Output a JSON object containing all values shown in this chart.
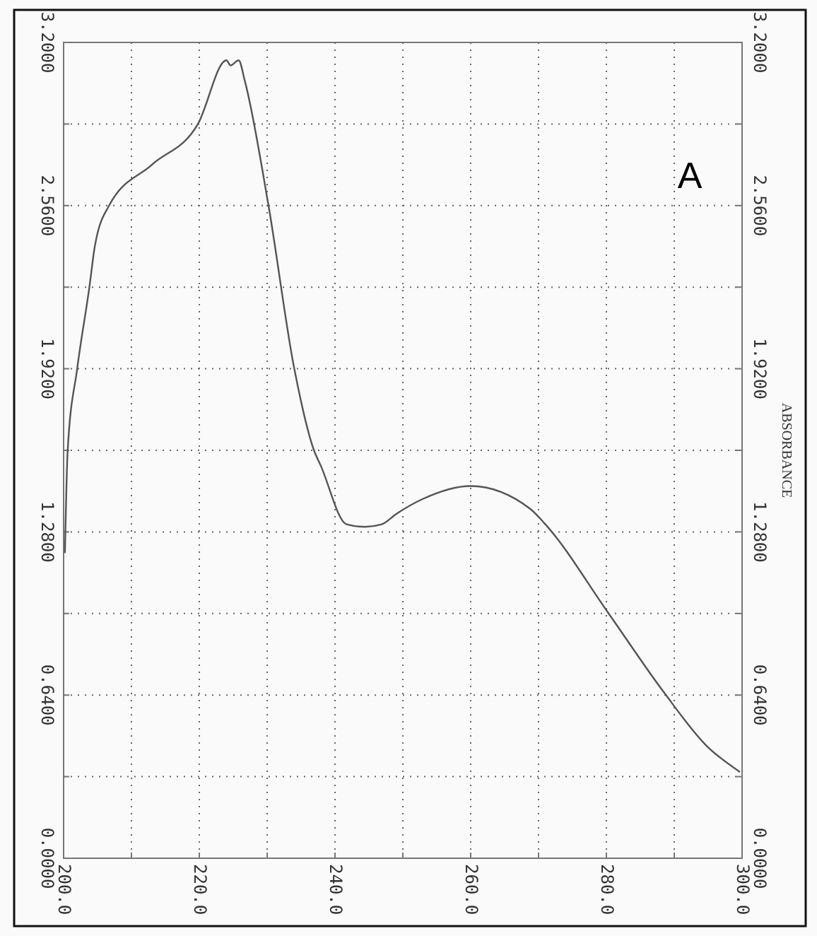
{
  "chart_data": {
    "type": "line",
    "y2label": "ABSORBANCE",
    "annotations": [
      "A"
    ],
    "series": [
      {
        "color": "#555555",
        "x": [
          200.2,
          200.6,
          202,
          203.8,
          204.6,
          206.7,
          213,
          219.8,
          224,
          224.6,
          225.8,
          226.7,
          230.2,
          234,
          236.9,
          237.9,
          241.7,
          244.4,
          246.9,
          249,
          253,
          260,
          268.8,
          271,
          280.2,
          288.5,
          294.8,
          299.6
        ],
        "values": [
          1.2,
          1.6,
          1.92,
          2.24,
          2.4,
          2.56,
          2.72,
          2.88,
          3.13,
          3.11,
          3.13,
          3.05,
          2.56,
          1.92,
          1.6,
          1.54,
          1.31,
          1.3,
          1.31,
          1.35,
          1.41,
          1.46,
          1.37,
          1.31,
          0.965,
          0.65,
          0.44,
          0.34
        ]
      }
    ],
    "xlim": [
      200,
      300
    ],
    "xticks": [
      {
        "value": 200,
        "label": "200.0"
      },
      {
        "value": 210,
        "label": null
      },
      {
        "value": 220,
        "label": "220.0"
      },
      {
        "value": 230,
        "label": null
      },
      {
        "value": 240,
        "label": "240.0"
      },
      {
        "value": 250,
        "label": null
      },
      {
        "value": 260,
        "label": "260.0"
      },
      {
        "value": 270,
        "label": null
      },
      {
        "value": 280,
        "label": "280.0"
      },
      {
        "value": 290,
        "label": null
      },
      {
        "value": 300,
        "label": "300.0"
      }
    ],
    "ylim": [
      0,
      3.2
    ],
    "yticks": [
      {
        "value": 0,
        "label": "0.0000"
      },
      {
        "value": 0.32,
        "label": null
      },
      {
        "value": 0.64,
        "label": "0.6400"
      },
      {
        "value": 0.96,
        "label": null
      },
      {
        "value": 1.28,
        "label": "1.2800"
      },
      {
        "value": 1.6,
        "label": null
      },
      {
        "value": 1.92,
        "label": "1.9200"
      },
      {
        "value": 2.24,
        "label": null
      },
      {
        "value": 2.56,
        "label": "2.5600"
      },
      {
        "value": 2.88,
        "label": null
      },
      {
        "value": 3.2,
        "label": "3.2000"
      }
    ],
    "y2lim": [
      0,
      3.2
    ],
    "y2ticks": [
      {
        "value": 0,
        "label": "0.0000"
      },
      {
        "value": 0.32,
        "label": null
      },
      {
        "value": 0.64,
        "label": "0.6400"
      },
      {
        "value": 0.96,
        "label": null
      },
      {
        "value": 1.28,
        "label": "1.2800"
      },
      {
        "value": 1.6,
        "label": null
      },
      {
        "value": 1.92,
        "label": "1.9200"
      },
      {
        "value": 2.24,
        "label": null
      },
      {
        "value": 2.56,
        "label": "2.5600"
      },
      {
        "value": 2.88,
        "label": null
      },
      {
        "value": 3.2,
        "label": "3.2000"
      }
    ],
    "grid": true,
    "line_style": "solid"
  }
}
